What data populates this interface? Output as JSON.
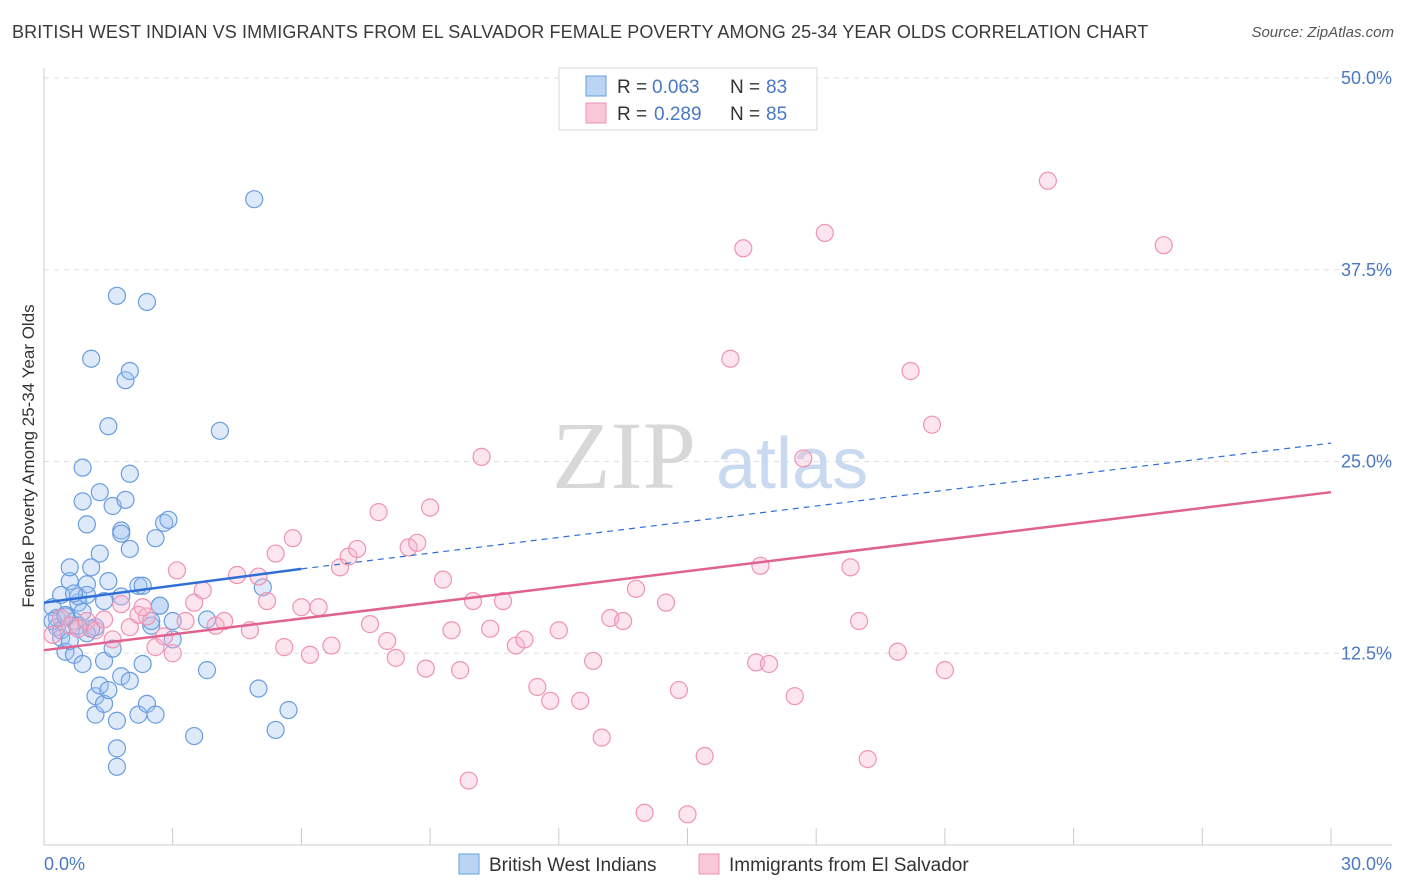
{
  "title": "BRITISH WEST INDIAN VS IMMIGRANTS FROM EL SALVADOR FEMALE POVERTY AMONG 25-34 YEAR OLDS CORRELATION CHART",
  "source": "Source: ZipAtlas.com",
  "watermark": {
    "zip": "ZIP",
    "atlas": "atlas"
  },
  "chart_data": {
    "type": "scatter",
    "title": "BRITISH WEST INDIAN VS IMMIGRANTS FROM EL SALVADOR FEMALE POVERTY AMONG 25-34 YEAR OLDS CORRELATION CHART",
    "xlabel": "",
    "ylabel": "Female Poverty Among 25-34 Year Olds",
    "xlim": [
      0,
      30
    ],
    "ylim": [
      0,
      50
    ],
    "x_tick_labels": [
      "0.0%",
      "30.0%"
    ],
    "y_ticks": [
      12.5,
      25.0,
      37.5,
      50.0
    ],
    "y_tick_labels": [
      "12.5%",
      "25.0%",
      "37.5%",
      "50.0%"
    ],
    "grid": "horizontal dashed",
    "legend_placement": "top-center",
    "colors": {
      "blue": "#6a9de0",
      "pink": "#ef93b3",
      "blue_line": "#2f6fd6",
      "pink_line": "#e0628f"
    },
    "stats": [
      {
        "r_label": "R =",
        "r": "0.063",
        "n_label": "N =",
        "n": "83"
      },
      {
        "r_label": "R =",
        "r": "0.289",
        "n_label": "N =",
        "n": "85"
      }
    ],
    "series": [
      {
        "name": "British West Indians",
        "color": "#6a9de0",
        "trend": {
          "x": [
            0,
            6.0
          ],
          "y": [
            15.8,
            18.0
          ],
          "dashed_to": [
            30,
            26.2
          ]
        },
        "points": [
          [
            0.2,
            15.5
          ],
          [
            0.3,
            14.8
          ],
          [
            0.3,
            14.2
          ],
          [
            0.4,
            16.3
          ],
          [
            0.4,
            13.5
          ],
          [
            0.5,
            12.6
          ],
          [
            0.5,
            15.0
          ],
          [
            0.6,
            17.2
          ],
          [
            0.6,
            18.1
          ],
          [
            0.7,
            14.6
          ],
          [
            0.7,
            12.4
          ],
          [
            0.8,
            15.8
          ],
          [
            0.8,
            16.2
          ],
          [
            0.9,
            15.2
          ],
          [
            0.9,
            11.8
          ],
          [
            0.9,
            24.6
          ],
          [
            0.9,
            22.4
          ],
          [
            1.0,
            20.9
          ],
          [
            1.0,
            17.0
          ],
          [
            1.0,
            16.3
          ],
          [
            1.1,
            31.7
          ],
          [
            1.1,
            18.1
          ],
          [
            1.2,
            14.2
          ],
          [
            1.2,
            9.7
          ],
          [
            1.2,
            8.5
          ],
          [
            1.3,
            23.0
          ],
          [
            1.3,
            19.0
          ],
          [
            1.3,
            10.4
          ],
          [
            1.4,
            12.0
          ],
          [
            1.4,
            9.2
          ],
          [
            1.4,
            15.9
          ],
          [
            1.5,
            27.3
          ],
          [
            1.5,
            17.2
          ],
          [
            1.5,
            10.1
          ],
          [
            1.6,
            22.1
          ],
          [
            1.6,
            12.8
          ],
          [
            1.7,
            35.8
          ],
          [
            1.7,
            8.1
          ],
          [
            1.7,
            6.3
          ],
          [
            1.7,
            5.1
          ],
          [
            1.8,
            20.5
          ],
          [
            1.8,
            20.3
          ],
          [
            1.8,
            16.2
          ],
          [
            1.8,
            11.0
          ],
          [
            1.9,
            30.3
          ],
          [
            1.9,
            22.5
          ],
          [
            2.0,
            30.9
          ],
          [
            2.0,
            24.2
          ],
          [
            2.0,
            19.3
          ],
          [
            2.0,
            10.7
          ],
          [
            2.2,
            8.5
          ],
          [
            2.2,
            16.9
          ],
          [
            2.3,
            16.9
          ],
          [
            2.3,
            11.8
          ],
          [
            2.4,
            35.4
          ],
          [
            2.4,
            9.2
          ],
          [
            2.5,
            14.3
          ],
          [
            2.5,
            14.6
          ],
          [
            2.6,
            20.0
          ],
          [
            2.6,
            8.5
          ],
          [
            2.7,
            15.6
          ],
          [
            2.7,
            15.6
          ],
          [
            2.8,
            21.0
          ],
          [
            2.9,
            21.2
          ],
          [
            3.0,
            14.6
          ],
          [
            3.0,
            13.4
          ],
          [
            3.5,
            7.1
          ],
          [
            3.8,
            11.4
          ],
          [
            3.8,
            14.7
          ],
          [
            4.1,
            27.0
          ],
          [
            4.9,
            42.1
          ],
          [
            5.0,
            10.2
          ],
          [
            5.1,
            16.8
          ],
          [
            5.4,
            7.5
          ],
          [
            5.7,
            8.8
          ],
          [
            0.2,
            14.6
          ],
          [
            0.4,
            14.0
          ],
          [
            0.6,
            13.3
          ],
          [
            0.8,
            14.3
          ],
          [
            1.0,
            13.8
          ],
          [
            0.5,
            14.9
          ],
          [
            0.7,
            16.4
          ],
          [
            1.1,
            14.1
          ]
        ]
      },
      {
        "name": "Immigrants from El Salvador",
        "color": "#ef93b3",
        "trend": {
          "x": [
            0,
            30
          ],
          "y": [
            12.7,
            23.0
          ]
        },
        "points": [
          [
            0.2,
            13.7
          ],
          [
            0.4,
            14.8
          ],
          [
            0.6,
            14.3
          ],
          [
            0.8,
            14.1
          ],
          [
            1.0,
            14.6
          ],
          [
            1.2,
            14.0
          ],
          [
            1.4,
            14.7
          ],
          [
            1.6,
            13.4
          ],
          [
            1.8,
            15.7
          ],
          [
            2.0,
            14.2
          ],
          [
            2.2,
            15.0
          ],
          [
            2.4,
            14.9
          ],
          [
            2.6,
            12.9
          ],
          [
            2.8,
            13.6
          ],
          [
            3.0,
            12.5
          ],
          [
            3.1,
            17.9
          ],
          [
            3.3,
            14.6
          ],
          [
            3.5,
            15.8
          ],
          [
            3.7,
            16.6
          ],
          [
            4.0,
            14.3
          ],
          [
            4.2,
            14.6
          ],
          [
            4.5,
            17.6
          ],
          [
            4.8,
            14.0
          ],
          [
            5.0,
            17.5
          ],
          [
            5.2,
            15.9
          ],
          [
            5.4,
            19.0
          ],
          [
            5.6,
            12.9
          ],
          [
            5.8,
            20.0
          ],
          [
            6.0,
            15.5
          ],
          [
            6.2,
            12.4
          ],
          [
            6.4,
            15.5
          ],
          [
            6.7,
            13.0
          ],
          [
            6.9,
            18.1
          ],
          [
            7.1,
            18.8
          ],
          [
            7.3,
            19.3
          ],
          [
            7.6,
            14.4
          ],
          [
            7.8,
            21.7
          ],
          [
            8.0,
            13.3
          ],
          [
            8.2,
            12.2
          ],
          [
            8.5,
            19.4
          ],
          [
            8.7,
            19.7
          ],
          [
            8.9,
            11.5
          ],
          [
            9.0,
            22.0
          ],
          [
            9.3,
            17.3
          ],
          [
            9.5,
            14.0
          ],
          [
            9.7,
            11.4
          ],
          [
            10.0,
            15.9
          ],
          [
            10.2,
            25.3
          ],
          [
            10.4,
            14.1
          ],
          [
            10.7,
            15.9
          ],
          [
            11.0,
            13.0
          ],
          [
            11.2,
            13.4
          ],
          [
            11.5,
            10.3
          ],
          [
            11.8,
            9.4
          ],
          [
            12.0,
            14.0
          ],
          [
            12.5,
            9.4
          ],
          [
            12.8,
            12.0
          ],
          [
            13.0,
            7.0
          ],
          [
            13.2,
            14.8
          ],
          [
            13.5,
            14.6
          ],
          [
            13.8,
            16.7
          ],
          [
            14.0,
            2.1
          ],
          [
            14.5,
            15.8
          ],
          [
            14.8,
            10.1
          ],
          [
            15.0,
            2.0
          ],
          [
            15.4,
            5.8
          ],
          [
            16.0,
            31.7
          ],
          [
            16.3,
            38.9
          ],
          [
            16.6,
            11.9
          ],
          [
            16.7,
            18.2
          ],
          [
            16.9,
            11.8
          ],
          [
            17.5,
            9.7
          ],
          [
            17.7,
            25.2
          ],
          [
            18.2,
            39.9
          ],
          [
            18.8,
            18.1
          ],
          [
            19.0,
            14.6
          ],
          [
            19.2,
            5.6
          ],
          [
            19.9,
            12.6
          ],
          [
            20.2,
            30.9
          ],
          [
            20.7,
            27.4
          ],
          [
            21.0,
            11.4
          ],
          [
            23.4,
            43.3
          ],
          [
            26.1,
            39.1
          ],
          [
            9.9,
            4.2
          ],
          [
            2.3,
            15.5
          ]
        ]
      }
    ]
  }
}
